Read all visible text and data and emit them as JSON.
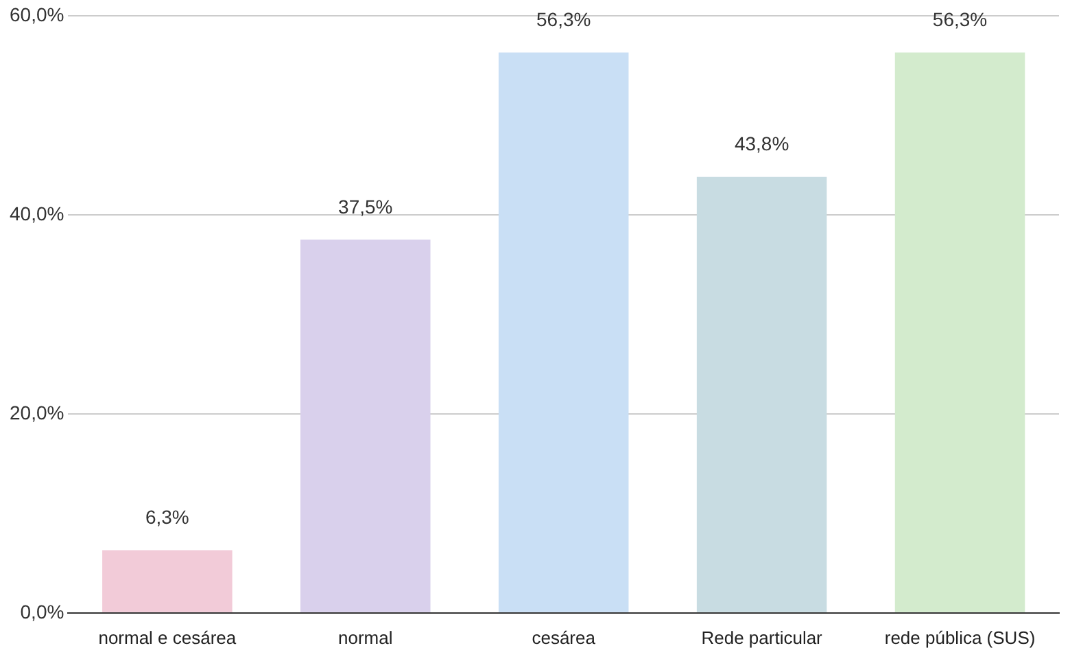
{
  "chart_data": {
    "type": "bar",
    "categories": [
      "normal e cesárea",
      "normal",
      "cesárea",
      "Rede particular",
      "rede pública (SUS)"
    ],
    "values": [
      6.3,
      37.5,
      56.3,
      43.8,
      56.3
    ],
    "colors": [
      "#f2cbd8",
      "#d9d0ec",
      "#c9dff5",
      "#c8dce2",
      "#d3ebcd"
    ],
    "value_labels": [
      "6,3%",
      "37,5%",
      "56,3%",
      "43,8%",
      "56,3%"
    ],
    "ylim": [
      0,
      60
    ],
    "yticks": [
      {
        "value": 0,
        "label": "0,0%"
      },
      {
        "value": 20,
        "label": "20,0%"
      },
      {
        "value": 40,
        "label": "40,0%"
      },
      {
        "value": 60,
        "label": "60,0%"
      }
    ],
    "grid": "y",
    "legend": false
  }
}
